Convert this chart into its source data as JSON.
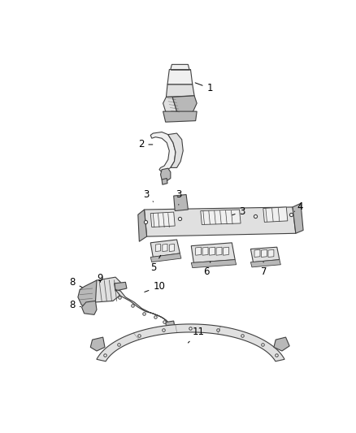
{
  "background_color": "#ffffff",
  "line_color": "#404040",
  "part_fill": "#e0e0e0",
  "part_dark": "#b8b8b8",
  "part_light": "#f0f0f0"
}
